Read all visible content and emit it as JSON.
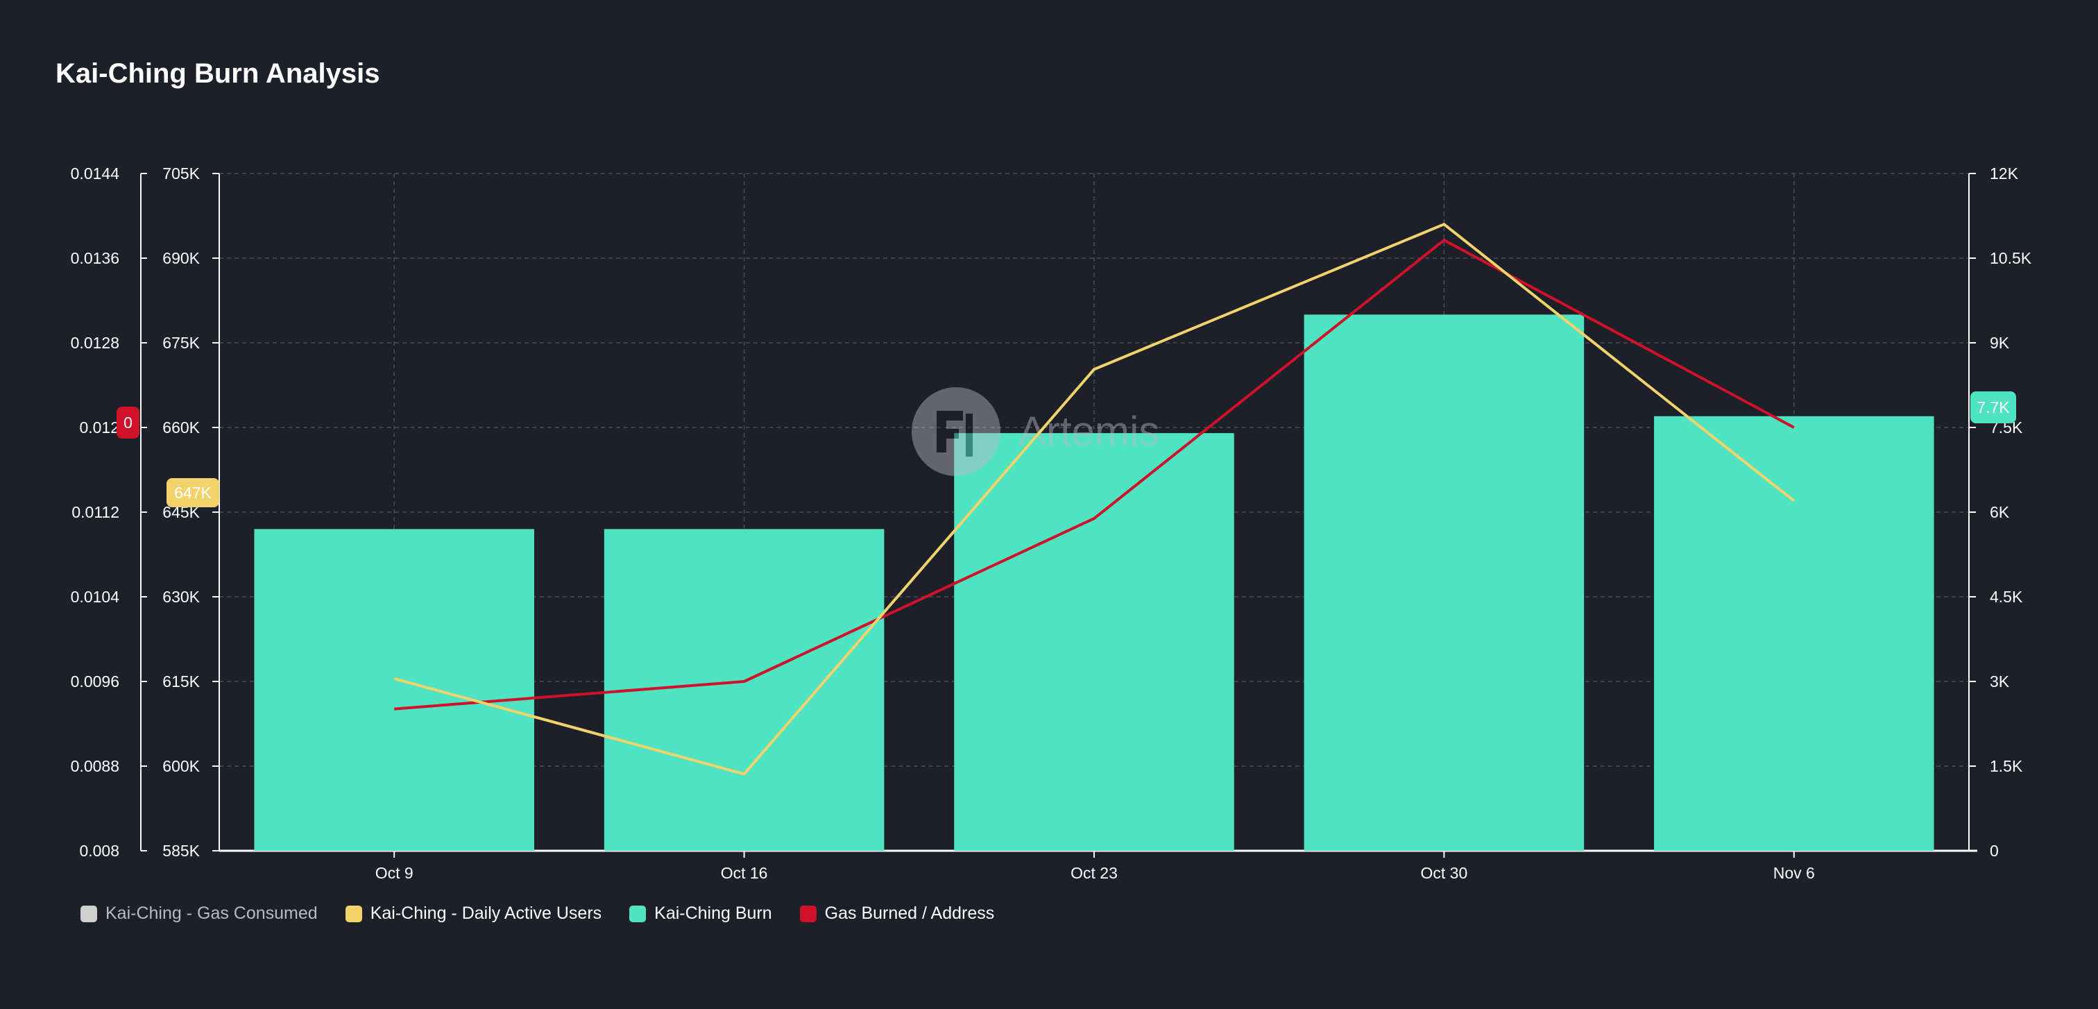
{
  "title": "Kai-Ching Burn Analysis",
  "watermark": "Artemis",
  "colors": {
    "background": "#1d1f29",
    "bar": "#4fe3c2",
    "dau_line": "#f2d36b",
    "gas_line": "#d0112a",
    "gas_consumed": "#cfcfcf",
    "grid": "#4a4d59"
  },
  "legend": [
    {
      "label": "Kai-Ching - Gas Consumed",
      "color": "#cfcfcf",
      "muted": true
    },
    {
      "label": "Kai-Ching - Daily Active Users",
      "color": "#f2d36b",
      "muted": false
    },
    {
      "label": "Kai-Ching Burn",
      "color": "#4fe3c2",
      "muted": false
    },
    {
      "label": "Gas Burned / Address",
      "color": "#d0112a",
      "muted": false
    }
  ],
  "chart_data": {
    "type": "bar",
    "title": "Kai-Ching Burn Analysis",
    "categories": [
      "Oct 9",
      "Oct 16",
      "Oct 23",
      "Oct 30",
      "Nov 6"
    ],
    "axes": {
      "left_outer": {
        "min": 0.008,
        "max": 0.0144,
        "ticks": [
          "0.008",
          "0.0088",
          "0.0096",
          "0.0104",
          "0.0112",
          "0.012",
          "0.0128",
          "0.0136",
          "0.0144"
        ]
      },
      "left_inner": {
        "min": 585000,
        "max": 705000,
        "ticks": [
          "585K",
          "600K",
          "615K",
          "630K",
          "645K",
          "660K",
          "675K",
          "690K",
          "705K"
        ]
      },
      "right": {
        "min": 0,
        "max": 12000,
        "ticks": [
          "0",
          "1.5K",
          "3K",
          "4.5K",
          "6K",
          "7.5K",
          "9K",
          "10.5K",
          "12K"
        ]
      }
    },
    "grid": true,
    "legend_position": "bottom-left",
    "series": [
      {
        "name": "Kai-Ching Burn",
        "kind": "bar",
        "axis": "right",
        "values": [
          5700,
          5700,
          7400,
          9500,
          7700
        ]
      },
      {
        "name": "Kai-Ching - Daily Active Users",
        "kind": "line",
        "axis": "left_inner",
        "values": [
          615500,
          598600,
          670300,
          696000,
          647000
        ]
      },
      {
        "name": "Gas Burned / Address",
        "kind": "line",
        "axis": "left_outer",
        "values": [
          0.00934,
          0.0096,
          0.01114,
          0.01377,
          0.012
        ]
      }
    ],
    "badges": {
      "left_inner": "647K",
      "left_outer": "0",
      "right": "7.7K"
    }
  }
}
